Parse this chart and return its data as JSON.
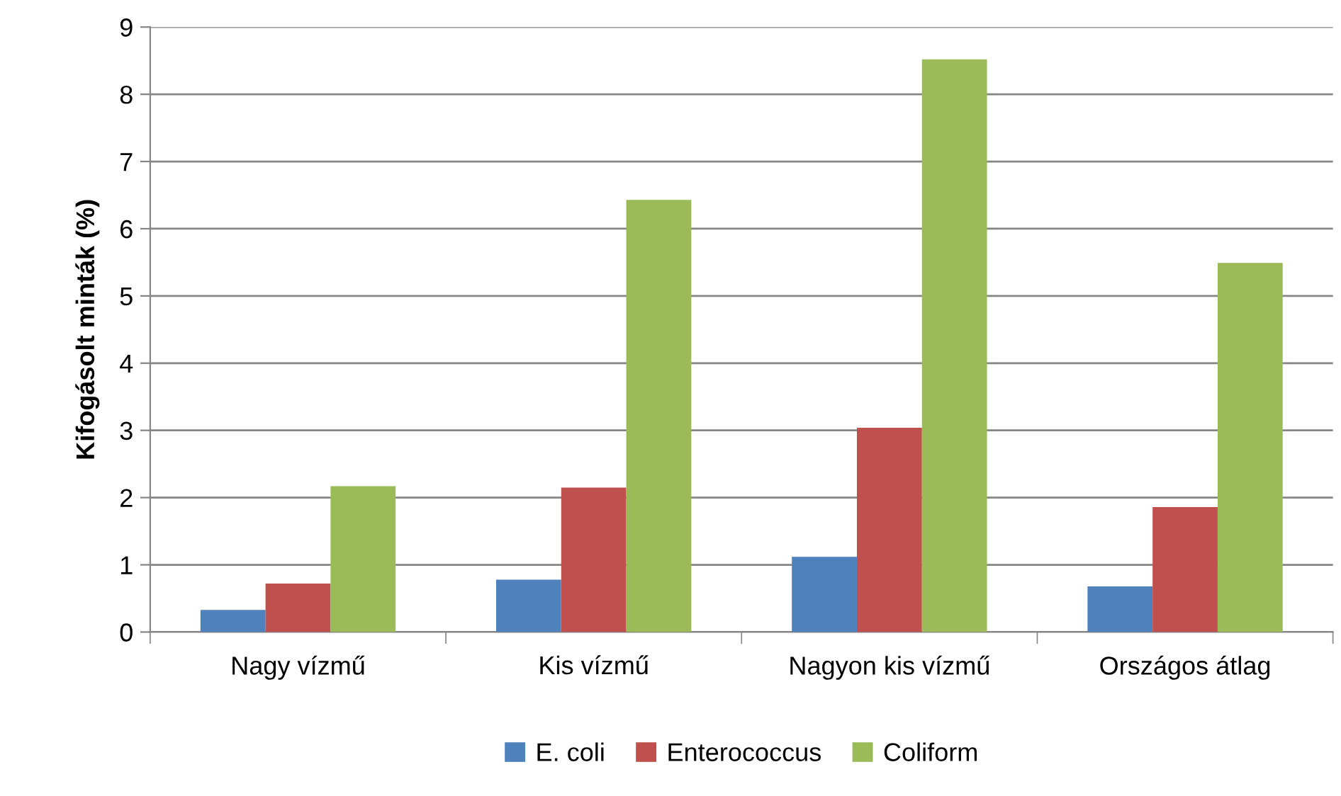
{
  "chart_data": {
    "type": "bar",
    "ylabel": "Kifogásolt minták (%)",
    "categories": [
      "Nagy vízmű",
      "Kis vízmű",
      "Nagyon kis vízmű",
      "Országos átlag"
    ],
    "series": [
      {
        "name": "E. coli",
        "color": "#4f81bd",
        "values": [
          0.33,
          0.78,
          1.12,
          0.68
        ]
      },
      {
        "name": "Enterococcus",
        "color": "#c0504d",
        "values": [
          0.72,
          2.15,
          3.04,
          1.86
        ]
      },
      {
        "name": "Coliform",
        "color": "#9bbb59",
        "values": [
          2.17,
          6.43,
          8.52,
          5.49
        ]
      }
    ],
    "ylim": [
      0,
      9
    ],
    "yticks": [
      0,
      1,
      2,
      3,
      4,
      5,
      6,
      7,
      8,
      9
    ],
    "grid": "y",
    "legend": "bottom"
  }
}
